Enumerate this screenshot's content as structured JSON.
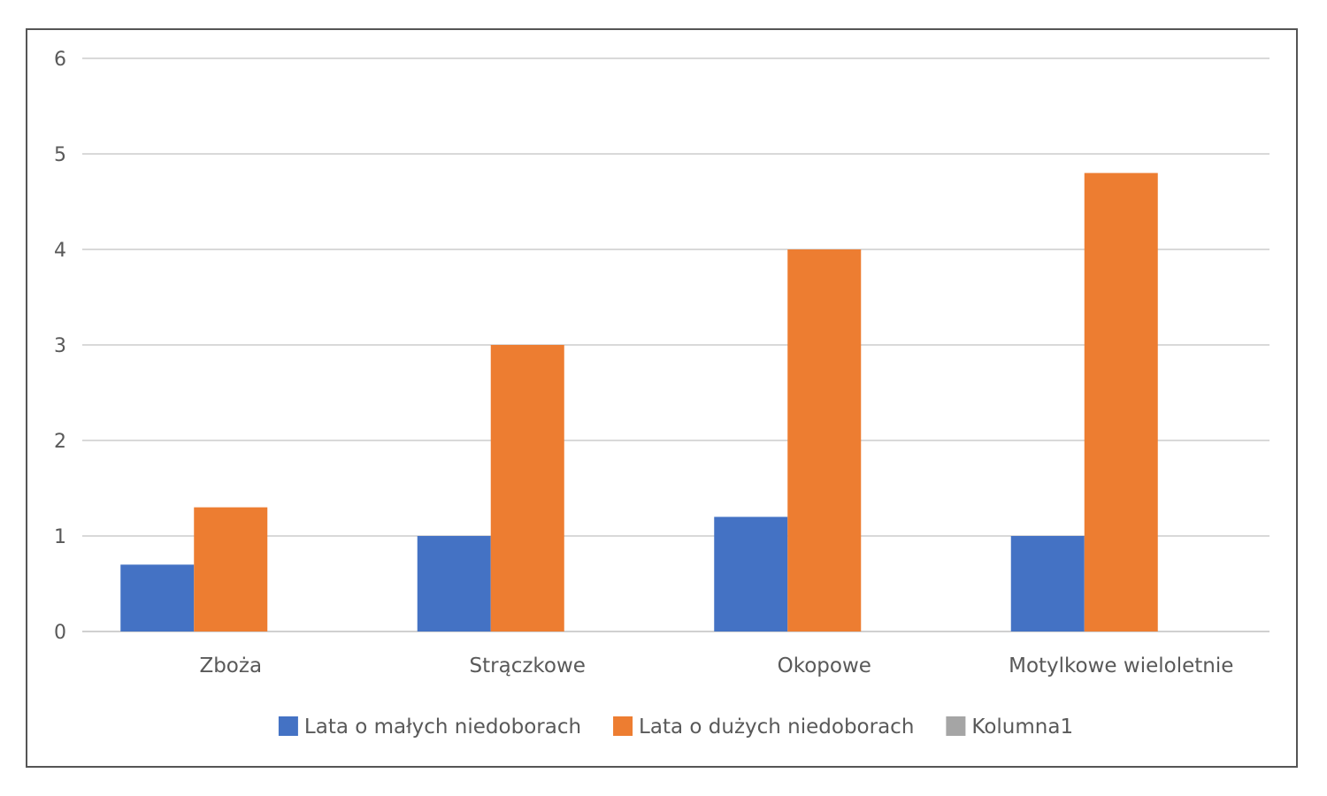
{
  "chart_data": {
    "type": "bar",
    "title": "",
    "xlabel": "",
    "ylabel": "",
    "categories": [
      "Zboża",
      "Strączkowe",
      "Okopowe",
      "Motylkowe wieloletnie"
    ],
    "series": [
      {
        "name": "Lata o małych niedoborach",
        "color": "#4472C4",
        "values": [
          0.7,
          1.0,
          1.2,
          1.0
        ]
      },
      {
        "name": "Lata o dużych niedoborach",
        "color": "#ED7D31",
        "values": [
          1.3,
          3.0,
          4.0,
          4.8
        ]
      },
      {
        "name": "Kolumna1",
        "color": "#A5A5A5",
        "values": [
          null,
          null,
          null,
          null
        ]
      }
    ],
    "ylim": [
      0,
      6
    ],
    "yticks": [
      0,
      1,
      2,
      3,
      4,
      5,
      6
    ],
    "grid": true,
    "legend_position": "bottom"
  }
}
